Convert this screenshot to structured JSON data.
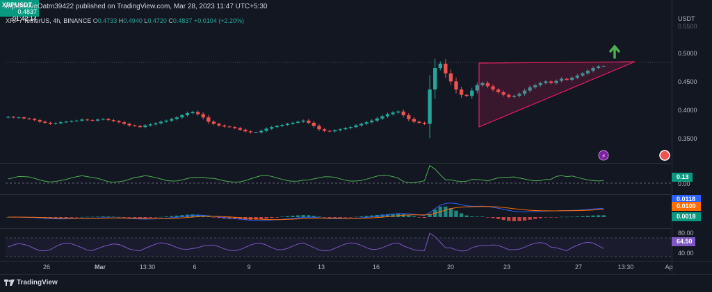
{
  "publisher": "impressiveOatm39422 published on TradingView.com, Mar 28, 2023 11:47 UTC+5:30",
  "legend": {
    "symbol": "XRP / TetherUS, 4h, BINANCE",
    "open_label": "O",
    "open": "0.4733",
    "high_label": "H",
    "high": "0.4940",
    "low_label": "L",
    "low": "0.4720",
    "close_label": "C",
    "close": "0.4837",
    "change": "+0.0104 (+2.20%)"
  },
  "price_axis": {
    "currency": "USDT",
    "top_partial": "0.5500",
    "ticks": [
      "0.5000",
      "0.4500",
      "0.4000",
      "0.3500"
    ]
  },
  "price_tag": {
    "symbol": "XRPUSDT",
    "price": "0.4837",
    "countdown": "01:42:14"
  },
  "indicator1": {
    "value": "0.13",
    "zero": "0.00"
  },
  "macd": {
    "value_blue": "0.0118",
    "value_orange": "0.0100",
    "value_hist": "0.0018"
  },
  "rsi": {
    "upper": "80.00",
    "value": "64.50",
    "lower": "40.00"
  },
  "time_axis": [
    "26",
    "Mar",
    "13:30",
    "6",
    "9",
    "13",
    "16",
    "20",
    "23",
    "27",
    "13:30",
    "Ap"
  ],
  "brand": "TradingView",
  "colors": {
    "up": "#26a69a",
    "down": "#ef5350",
    "pattern": "#e91e63",
    "arrow": "#4caf50",
    "macd_blue": "#2962ff",
    "macd_orange": "#ff6d00",
    "rsi": "#7e57c2",
    "osc": "#4caf50"
  },
  "chart_data": {
    "type": "candlestick",
    "title": "XRP / TetherUS, 4h, BINANCE",
    "ylim": [
      0.325,
      0.555
    ],
    "close_series": [
      0.389,
      0.388,
      0.388,
      0.386,
      0.385,
      0.383,
      0.38,
      0.378,
      0.376,
      0.377,
      0.379,
      0.38,
      0.381,
      0.382,
      0.384,
      0.383,
      0.382,
      0.384,
      0.385,
      0.383,
      0.381,
      0.379,
      0.376,
      0.373,
      0.372,
      0.37,
      0.373,
      0.375,
      0.377,
      0.38,
      0.382,
      0.385,
      0.388,
      0.392,
      0.396,
      0.398,
      0.394,
      0.388,
      0.38,
      0.376,
      0.373,
      0.371,
      0.37,
      0.368,
      0.365,
      0.362,
      0.36,
      0.36,
      0.363,
      0.367,
      0.37,
      0.372,
      0.374,
      0.376,
      0.378,
      0.38,
      0.382,
      0.378,
      0.372,
      0.366,
      0.363,
      0.362,
      0.364,
      0.366,
      0.368,
      0.37,
      0.373,
      0.376,
      0.379,
      0.382,
      0.386,
      0.39,
      0.394,
      0.397,
      0.399,
      0.392,
      0.385,
      0.38,
      0.378,
      0.376,
      0.44,
      0.48,
      0.488,
      0.47,
      0.455,
      0.44,
      0.43,
      0.428,
      0.438,
      0.448,
      0.452,
      0.446,
      0.44,
      0.435,
      0.43,
      0.426,
      0.428,
      0.432,
      0.438,
      0.444,
      0.448,
      0.452,
      0.455,
      0.452,
      0.456,
      0.46,
      0.458,
      0.462,
      0.466,
      0.47,
      0.475,
      0.48,
      0.483,
      0.4837
    ],
    "pattern": "ascending triangle"
  }
}
